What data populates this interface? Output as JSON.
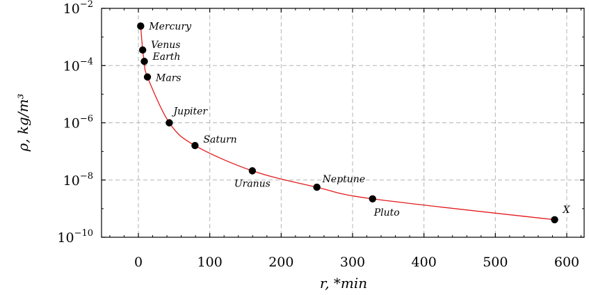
{
  "chart_data": {
    "type": "scatter",
    "title": "",
    "xlabel": "r, *min",
    "ylabel": "ρ, kg/m³",
    "xlim": [
      -50,
      630
    ],
    "ylim": [
      1e-10,
      0.01
    ],
    "y_scale": "log",
    "grid": true,
    "x_ticks": [
      0,
      100,
      200,
      300,
      400,
      500,
      600
    ],
    "y_ticks": [
      {
        "value": 1e-10,
        "base": "10",
        "exp": "−10"
      },
      {
        "value": 1e-08,
        "base": "10",
        "exp": "−8"
      },
      {
        "value": 1e-06,
        "base": "10",
        "exp": "−6"
      },
      {
        "value": 0.0001,
        "base": "10",
        "exp": "−4"
      },
      {
        "value": 0.01,
        "base": "10",
        "exp": "−2"
      }
    ],
    "points": [
      {
        "label": "Mercury",
        "x": 3.2,
        "y": 0.0024
      },
      {
        "label": "Venus",
        "x": 6.0,
        "y": 0.00035
      },
      {
        "label": "Earth",
        "x": 8.3,
        "y": 0.00014
      },
      {
        "label": "Mars",
        "x": 12.7,
        "y": 4e-05
      },
      {
        "label": "Jupiter",
        "x": 43.3,
        "y": 1e-06
      },
      {
        "label": "Saturn",
        "x": 79.3,
        "y": 1.6e-07
      },
      {
        "label": "Uranus",
        "x": 159.6,
        "y": 2.1e-08
      },
      {
        "label": "Neptune",
        "x": 250.0,
        "y": 5.6e-09
      },
      {
        "label": "Pluto",
        "x": 328.0,
        "y": 2.2e-09
      },
      {
        "label": "X",
        "x": 583.0,
        "y": 4.1e-10
      }
    ],
    "colors": {
      "curve": "#e41a1c",
      "points": "#000000",
      "grid": "#b3b3b3"
    }
  }
}
